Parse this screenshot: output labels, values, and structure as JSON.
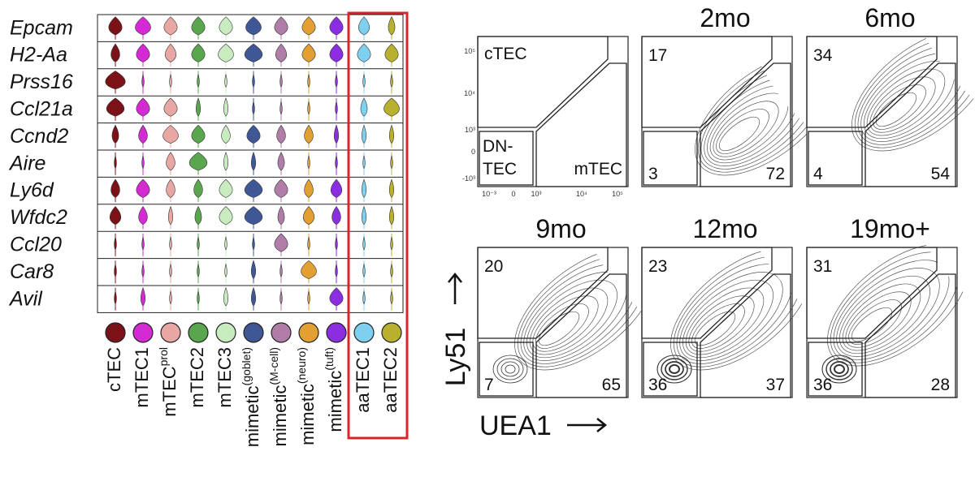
{
  "violin": {
    "genes": [
      "Epcam",
      "H2-Aa",
      "Prss16",
      "Ccl21a",
      "Ccnd2",
      "Aire",
      "Ly6d",
      "Wfdc2",
      "Ccl20",
      "Car8",
      "Avil"
    ],
    "cell_types": [
      {
        "label": "cTEC",
        "color": "#7a1217"
      },
      {
        "label": "mTEC1",
        "color": "#d42ad4"
      },
      {
        "label": "mTEC",
        "sup": "prol",
        "color": "#e8a7a2"
      },
      {
        "label": "mTEC2",
        "color": "#5aa64f"
      },
      {
        "label": "mTEC3",
        "color": "#c8ebbf"
      },
      {
        "label": "mimetic",
        "sup": "(goblet)",
        "color": "#3f5795"
      },
      {
        "label": "mimetic",
        "sup": "(M-cell)",
        "color": "#b07ca8"
      },
      {
        "label": "mimetic",
        "sup": "(neuro)",
        "color": "#e2a033"
      },
      {
        "label": "mimetic",
        "sup": "(tuft)",
        "color": "#8b2de0"
      },
      {
        "label": "aaTEC1",
        "color": "#7fd0f0"
      },
      {
        "label": "aaTEC2",
        "color": "#b8b02e"
      }
    ],
    "highlight_color": "#d6262b"
  },
  "flow": {
    "y_axis_label": "Ly51",
    "x_axis_label": "UEA1",
    "reference": {
      "ctec": "cTEC",
      "dn": "DN-",
      "dn2": "TEC",
      "mtec": "mTEC",
      "yticks": [
        "10⁵",
        "10⁴",
        "10³",
        "0",
        "-10³"
      ],
      "xticks": [
        "10⁻³",
        "0",
        "10³",
        "10⁴",
        "10⁵"
      ]
    },
    "panels": [
      {
        "title": "2mo",
        "ctec": 17,
        "dn": 3,
        "mtec": 72
      },
      {
        "title": "6mo",
        "ctec": 34,
        "dn": 4,
        "mtec": 54
      },
      {
        "title": "9mo",
        "ctec": 20,
        "dn": 7,
        "mtec": 65
      },
      {
        "title": "12mo",
        "ctec": 23,
        "dn": 36,
        "mtec": 37
      },
      {
        "title": "19mo+",
        "ctec": 31,
        "dn": 36,
        "mtec": 28
      }
    ]
  }
}
